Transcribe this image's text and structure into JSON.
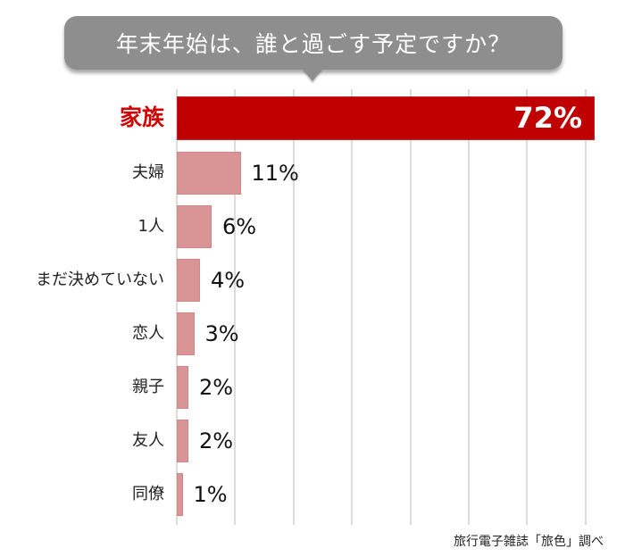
{
  "title": "年末年始は、誰と過ごす予定ですか？",
  "source": "旅行電子雑誌「旅色」調べ",
  "colors": {
    "bubble": "#8e8e8e",
    "highlight_bar": "#c00000",
    "highlight_label": "#d40000",
    "bar": "#d99595",
    "grid": "#dcdcdc"
  },
  "chart_data": {
    "type": "bar",
    "orientation": "horizontal",
    "title": "年末年始は、誰と過ごす予定ですか？",
    "categories": [
      "家族",
      "夫婦",
      "1人",
      "まだ決めていない",
      "恋人",
      "親子",
      "友人",
      "同僚"
    ],
    "values": [
      72,
      11,
      6,
      4,
      3,
      2,
      2,
      1
    ],
    "value_labels": [
      "72%",
      "11%",
      "6%",
      "4%",
      "3%",
      "2%",
      "2%",
      "1%"
    ],
    "unit": "%",
    "highlight_index": 0,
    "xlim": [
      0,
      70
    ],
    "grid": true,
    "gridline_count": 8,
    "xlabel": "",
    "ylabel": "",
    "annotation": "旅行電子雑誌「旅色」調べ"
  }
}
